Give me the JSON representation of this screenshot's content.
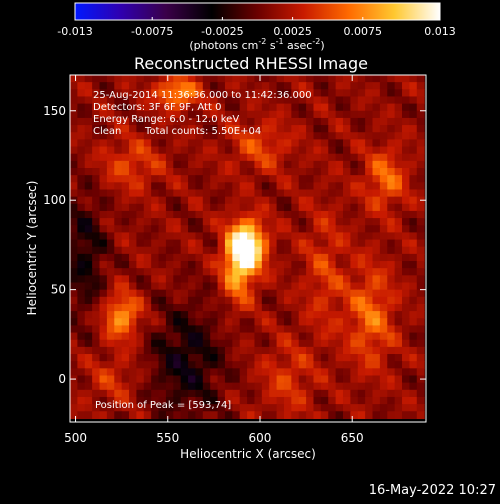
{
  "colorbar": {
    "min": -0.013,
    "max": 0.013,
    "ticks": [
      "-0.013",
      "-0.0075",
      "-0.0025",
      "0.0025",
      "0.0075",
      "0.013"
    ],
    "tick_values": [
      -0.013,
      -0.0075,
      -0.0025,
      0.0025,
      0.0075,
      0.013
    ],
    "units_main": "(photons cm",
    "units_sup1": "-2",
    "units_mid": " s",
    "units_sup2": "-1",
    "units_end": " asec",
    "units_sup3": "-2",
    "units_close": ")",
    "colors": [
      "#0018ff",
      "#2f00b0",
      "#3a0048",
      "#000000",
      "#6b0000",
      "#c81a00",
      "#ff6a00",
      "#ffc830",
      "#ffffff"
    ]
  },
  "chart_data": {
    "type": "heatmap",
    "title": "Reconstructed RHESSI Image",
    "xlabel": "Heliocentric X (arcsec)",
    "ylabel": "Heliocentric Y (arcsec)",
    "xlim": [
      497,
      690
    ],
    "ylim": [
      -24,
      170
    ],
    "xticks": [
      500,
      550,
      600,
      650
    ],
    "yticks": [
      0,
      50,
      100,
      150
    ],
    "annotations": {
      "line1": "25-Aug-2014 11:36:36.000 to 11:42:36.000",
      "line2": "Detectors: 3F 6F 9F, Att 0",
      "line3": "Energy Range: 6.0 - 12.0 keV",
      "line4_a": "Clean",
      "line4_b": "Total counts: 5.50E+04",
      "peak": "Position of Peak = [593,74]"
    },
    "peak": {
      "x": 593,
      "y": 74
    },
    "sources": [
      {
        "x": 593,
        "y": 74,
        "amp": 0.0125,
        "sx": 7,
        "sy": 10
      },
      {
        "x": 588,
        "y": 60,
        "amp": 0.006,
        "sx": 6,
        "sy": 14
      },
      {
        "x": 525,
        "y": 35,
        "amp": 0.007,
        "sx": 7,
        "sy": 9
      },
      {
        "x": 668,
        "y": 112,
        "amp": 0.005,
        "sx": 8,
        "sy": 12
      },
      {
        "x": 660,
        "y": 35,
        "amp": 0.005,
        "sx": 9,
        "sy": 20
      },
      {
        "x": 555,
        "y": 160,
        "amp": 0.007,
        "sx": 8,
        "sy": 6
      },
      {
        "x": 530,
        "y": 120,
        "amp": 0.0035,
        "sx": 12,
        "sy": 10
      },
      {
        "x": 600,
        "y": 130,
        "amp": 0.0035,
        "sx": 12,
        "sy": 10
      },
      {
        "x": 615,
        "y": 0,
        "amp": 0.003,
        "sx": 10,
        "sy": 14
      },
      {
        "x": 520,
        "y": 0,
        "amp": 0.0025,
        "sx": 10,
        "sy": 10
      },
      {
        "x": 635,
        "y": 60,
        "amp": 0.003,
        "sx": 8,
        "sy": 25
      }
    ],
    "negative_regions": [
      {
        "x": 505,
        "y": 70,
        "amp": -0.004,
        "sx": 8,
        "sy": 25
      },
      {
        "x": 560,
        "y": 10,
        "amp": -0.0045,
        "sx": 14,
        "sy": 22
      }
    ],
    "background": 0.0012
  },
  "timestamp": "16-May-2022 10:27"
}
